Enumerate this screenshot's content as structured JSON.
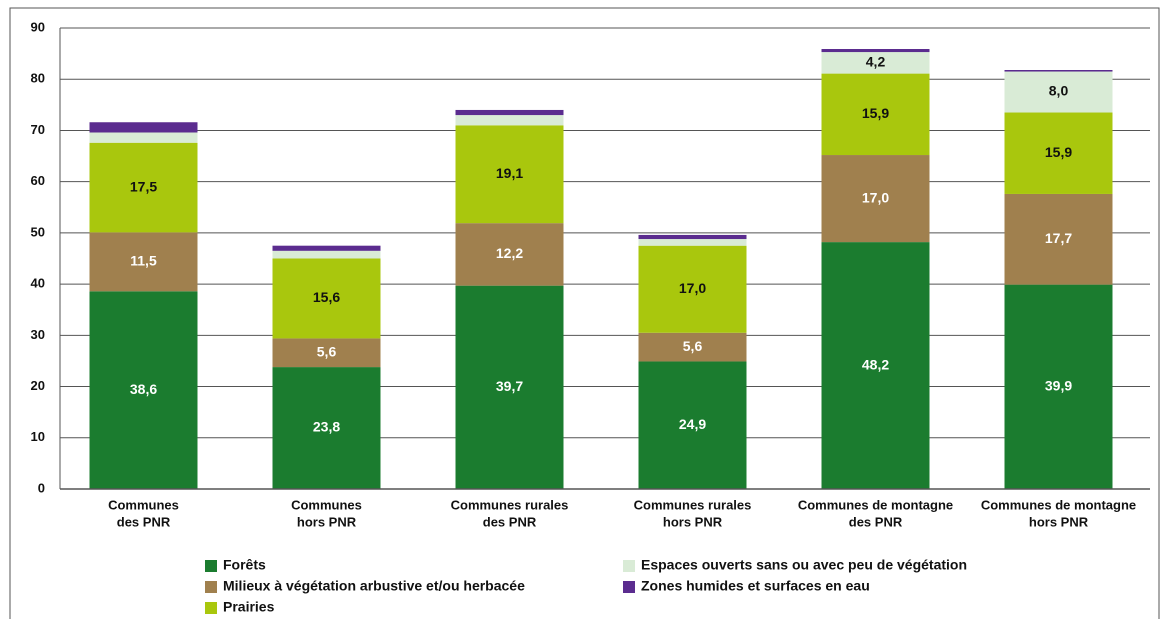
{
  "chart_data": {
    "type": "bar",
    "stacked": true,
    "categories": [
      [
        "Communes",
        "des PNR"
      ],
      [
        "Communes",
        "hors PNR"
      ],
      [
        "Communes rurales",
        "des PNR"
      ],
      [
        "Communes rurales",
        "hors PNR"
      ],
      [
        "Communes de montagne",
        "des PNR"
      ],
      [
        "Communes de montagne",
        "hors PNR"
      ]
    ],
    "series": [
      {
        "name": "Forêts",
        "color": "#1b7c2f",
        "label_color": "#ffffff",
        "values": [
          38.6,
          23.8,
          39.7,
          24.9,
          48.2,
          39.9
        ],
        "value_labels": [
          "38,6",
          "23,8",
          "39,7",
          "24,9",
          "48,2",
          "39,9"
        ]
      },
      {
        "name": "Milieux à végétation arbustive et/ou herbacée",
        "color": "#a0804e",
        "label_color": "#ffffff",
        "values": [
          11.5,
          5.6,
          12.2,
          5.6,
          17.0,
          17.7
        ],
        "value_labels": [
          "11,5",
          "5,6",
          "12,2",
          "5,6",
          "17,0",
          "17,7"
        ]
      },
      {
        "name": "Prairies",
        "color": "#a9c70d",
        "label_color": "#111111",
        "values": [
          17.5,
          15.6,
          19.1,
          17.0,
          15.9,
          15.9
        ],
        "value_labels": [
          "17,5",
          "15,6",
          "19,1",
          "17,0",
          "15,9",
          "15,9"
        ]
      },
      {
        "name": "Espaces ouverts sans ou avec peu de végétation",
        "color": "#d9ebd6",
        "label_color": "#111111",
        "values": [
          2.0,
          1.5,
          2.0,
          1.3,
          4.2,
          8.0
        ],
        "value_labels": [
          null,
          null,
          null,
          null,
          "4,2",
          "8,0"
        ]
      },
      {
        "name": "Zones humides et surfaces en eau",
        "color": "#5b2c8f",
        "label_color": "#ffffff",
        "values": [
          2.0,
          1.0,
          1.0,
          0.8,
          0.6,
          0.3
        ],
        "value_labels": [
          null,
          null,
          null,
          null,
          null,
          null
        ]
      }
    ],
    "ylim": [
      0,
      90
    ],
    "yticks": [
      0,
      10,
      20,
      30,
      40,
      50,
      60,
      70,
      80,
      90
    ],
    "grid": true
  }
}
